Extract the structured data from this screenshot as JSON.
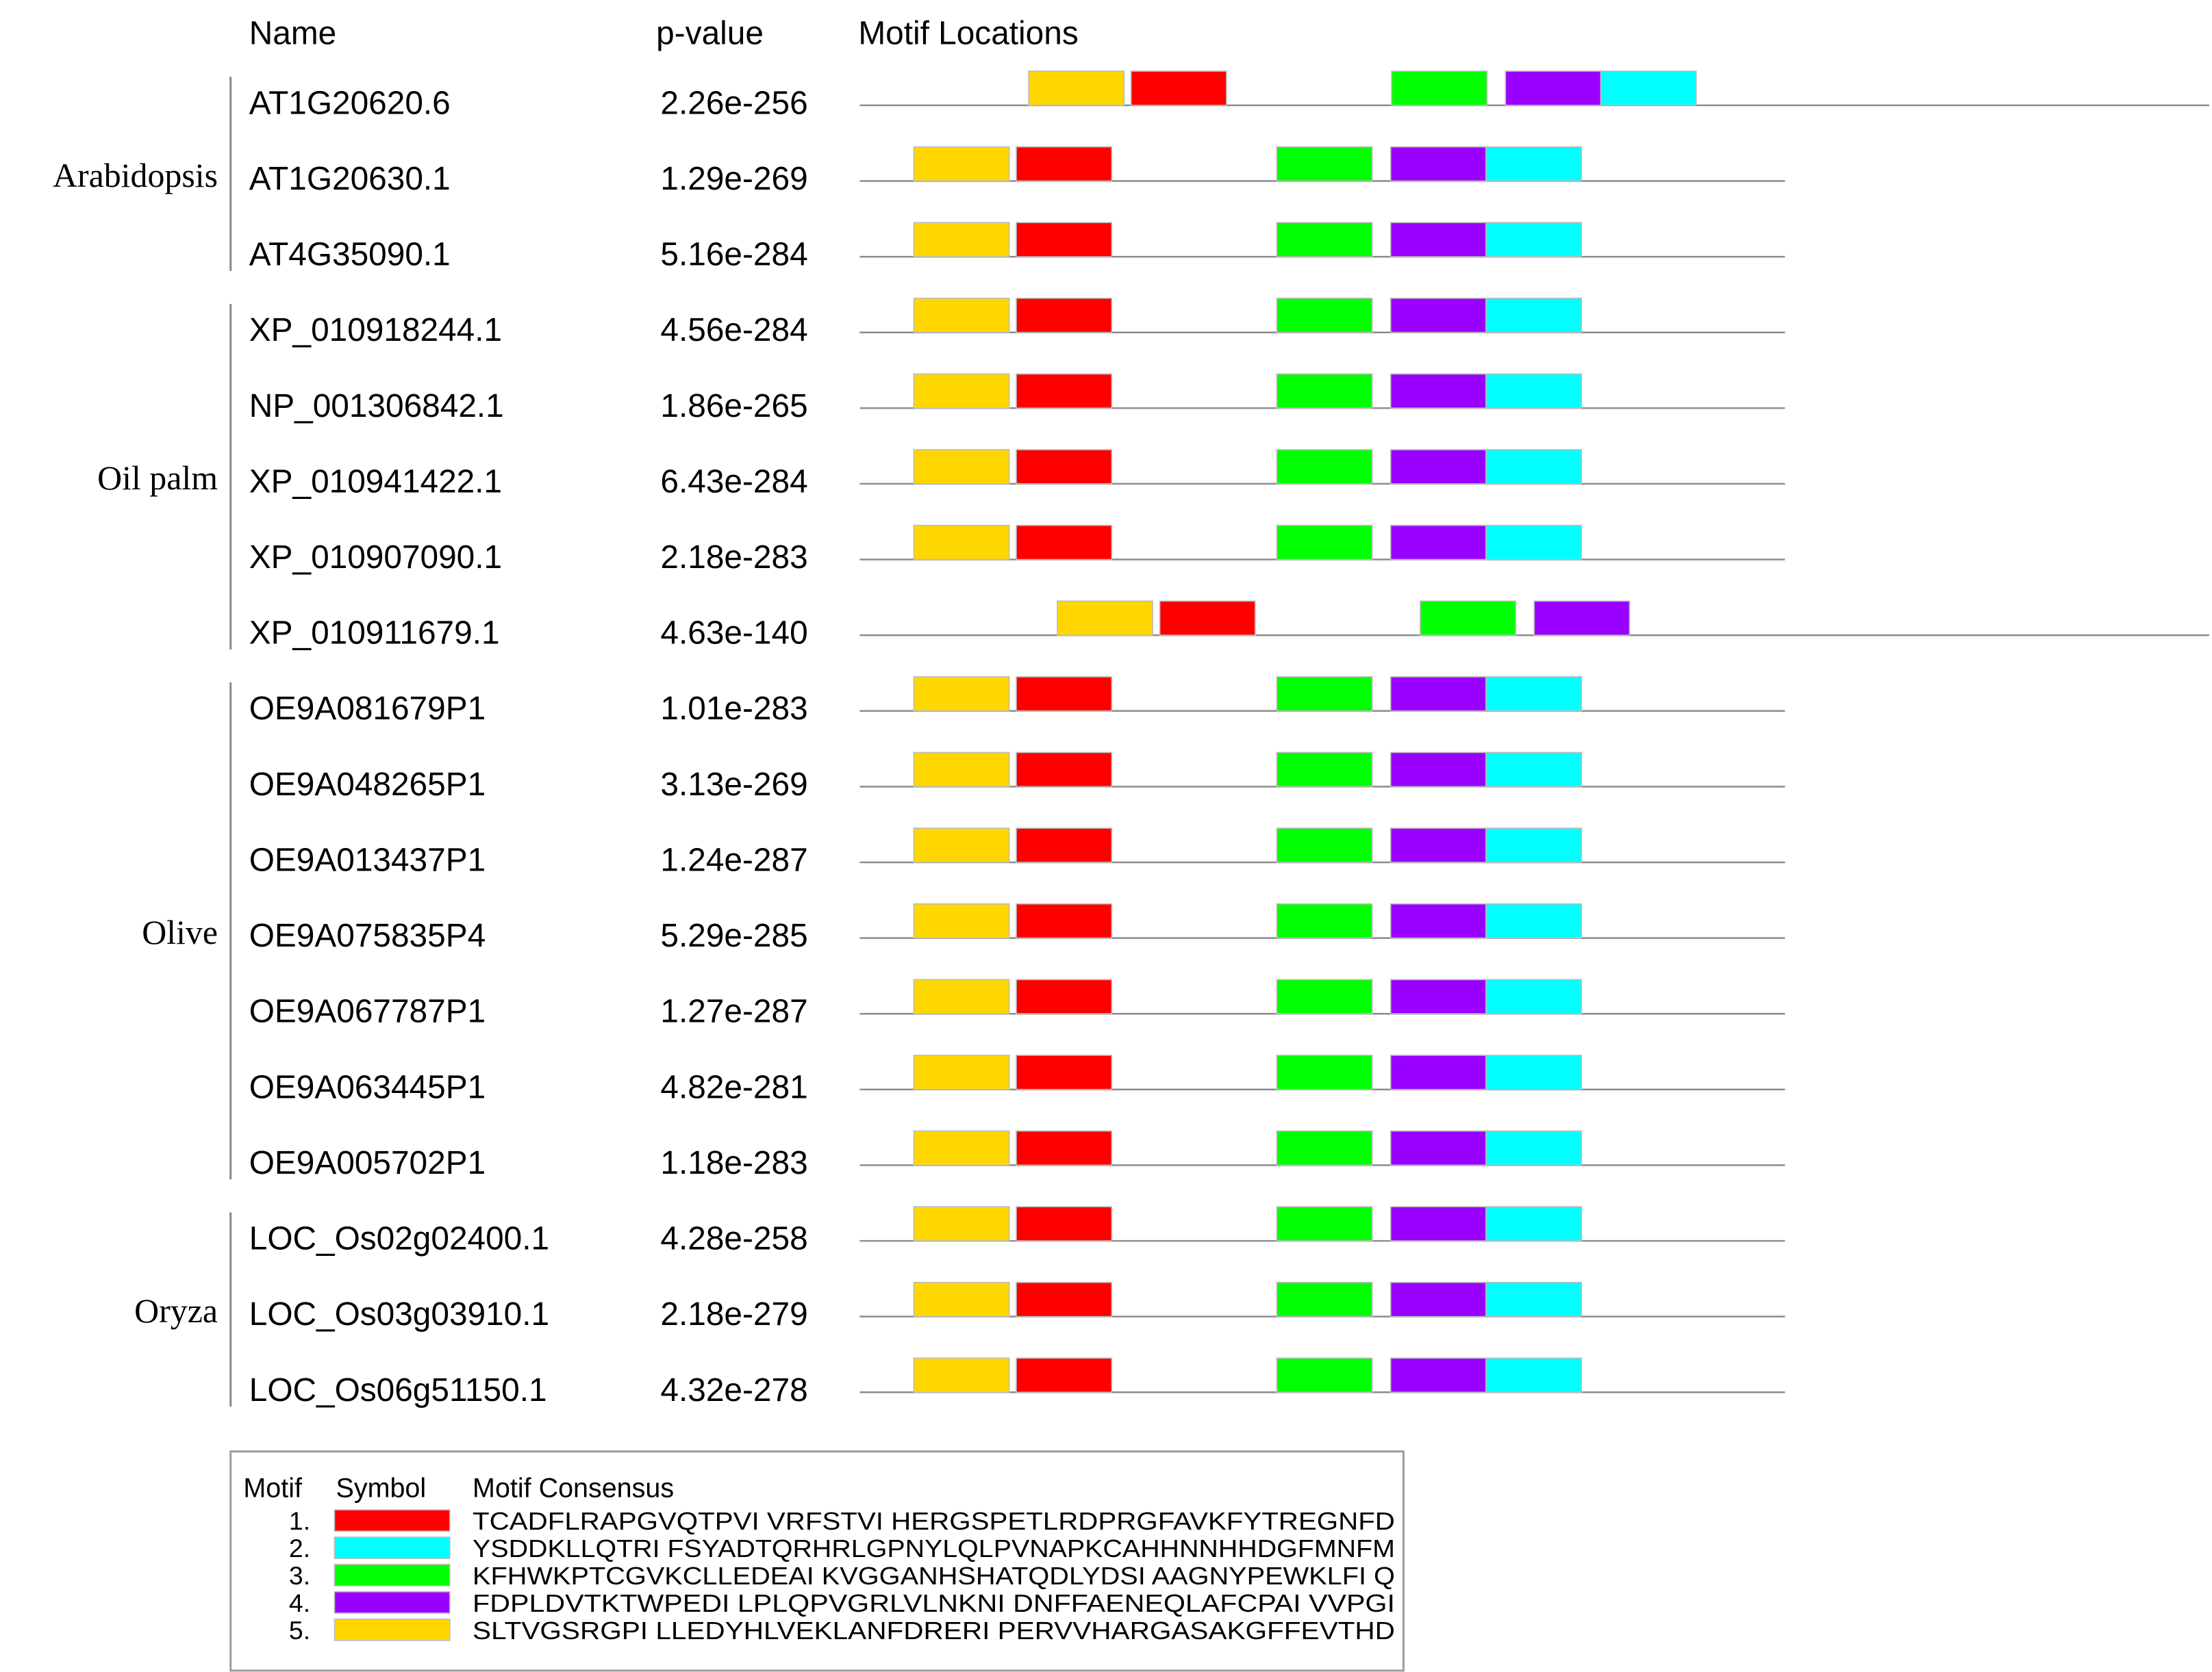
{
  "headers": {
    "name": "Name",
    "pvalue": "p-value",
    "locations": "Motif Locations"
  },
  "groups": [
    {
      "label": "Arabidopsis",
      "start": 0,
      "end": 2
    },
    {
      "label": "Oil palm",
      "start": 3,
      "end": 7
    },
    {
      "label": "Olive",
      "start": 8,
      "end": 14
    },
    {
      "label": "Oryza",
      "start": 15,
      "end": 17
    }
  ],
  "motif_colors": {
    "1": "#ff0000",
    "2": "#00ffff",
    "3": "#00ff00",
    "4": "#9900ff",
    "5": "#ffd700"
  },
  "rows": [
    {
      "name": "AT1G20620.6",
      "pvalue": "2.26e-256",
      "shift": 1.12,
      "length": 1.9,
      "motifs": [
        5,
        1,
        3,
        4,
        2
      ]
    },
    {
      "name": "AT1G20630.1",
      "pvalue": "1.29e-269",
      "shift": 0.0,
      "length": 1.0,
      "motifs": [
        5,
        1,
        3,
        4,
        2
      ]
    },
    {
      "name": "AT4G35090.1",
      "pvalue": "5.16e-284",
      "shift": 0.0,
      "length": 1.0,
      "motifs": [
        5,
        1,
        3,
        4,
        2
      ]
    },
    {
      "name": "XP_010918244.1",
      "pvalue": "4.56e-284",
      "shift": 0.0,
      "length": 1.0,
      "motifs": [
        5,
        1,
        3,
        4,
        2
      ]
    },
    {
      "name": "NP_001306842.1",
      "pvalue": "1.86e-265",
      "shift": 0.0,
      "length": 1.0,
      "motifs": [
        5,
        1,
        3,
        4,
        2
      ]
    },
    {
      "name": "XP_010941422.1",
      "pvalue": "6.43e-284",
      "shift": 0.0,
      "length": 1.0,
      "motifs": [
        5,
        1,
        3,
        4,
        2
      ]
    },
    {
      "name": "XP_010907090.1",
      "pvalue": "2.18e-283",
      "shift": 0.0,
      "length": 1.0,
      "motifs": [
        5,
        1,
        3,
        4,
        2
      ]
    },
    {
      "name": "XP_010911679.1",
      "pvalue": "4.63e-140",
      "shift": 1.4,
      "length": 2.8,
      "motifs": [
        5,
        1,
        3,
        4
      ]
    },
    {
      "name": "OE9A081679P1",
      "pvalue": "1.01e-283",
      "shift": 0.0,
      "length": 1.0,
      "motifs": [
        5,
        1,
        3,
        4,
        2
      ]
    },
    {
      "name": "OE9A048265P1",
      "pvalue": "3.13e-269",
      "shift": 0.0,
      "length": 1.0,
      "motifs": [
        5,
        1,
        3,
        4,
        2
      ]
    },
    {
      "name": "OE9A013437P1",
      "pvalue": "1.24e-287",
      "shift": 0.0,
      "length": 1.0,
      "motifs": [
        5,
        1,
        3,
        4,
        2
      ]
    },
    {
      "name": "OE9A075835P4",
      "pvalue": "5.29e-285",
      "shift": 0.0,
      "length": 1.0,
      "motifs": [
        5,
        1,
        3,
        4,
        2
      ]
    },
    {
      "name": "OE9A067787P1",
      "pvalue": "1.27e-287",
      "shift": 0.0,
      "length": 1.0,
      "motifs": [
        5,
        1,
        3,
        4,
        2
      ]
    },
    {
      "name": "OE9A063445P1",
      "pvalue": "4.82e-281",
      "shift": 0.0,
      "length": 1.0,
      "motifs": [
        5,
        1,
        3,
        4,
        2
      ]
    },
    {
      "name": "OE9A005702P1",
      "pvalue": "1.18e-283",
      "shift": 0.0,
      "length": 1.0,
      "motifs": [
        5,
        1,
        3,
        4,
        2
      ]
    },
    {
      "name": "LOC_Os02g02400.1",
      "pvalue": "4.28e-258",
      "shift": 0.0,
      "length": 1.0,
      "motifs": [
        5,
        1,
        3,
        4,
        2
      ]
    },
    {
      "name": "LOC_Os03g03910.1",
      "pvalue": "2.18e-279",
      "shift": 0.0,
      "length": 1.0,
      "motifs": [
        5,
        1,
        3,
        4,
        2
      ]
    },
    {
      "name": "LOC_Os06g51150.1",
      "pvalue": "4.32e-278",
      "shift": 0.0,
      "length": 1.0,
      "motifs": [
        5,
        1,
        3,
        4,
        2
      ]
    }
  ],
  "legend": {
    "headers": {
      "motif": "Motif",
      "symbol": "Symbol",
      "consensus": "Motif Consensus"
    },
    "entries": [
      {
        "number": "1.",
        "motif": 1,
        "consensus": "TCADFLRAPGVQTPVI VRFSTVI HERGSPETLRDPRGFAVKFYTREGNFD"
      },
      {
        "number": "2.",
        "motif": 2,
        "consensus": "YSDDKLLQTRI FSYADTQRHRLGPNYLQLPVNAPKCAHHNNHHDGFMNFM"
      },
      {
        "number": "3.",
        "motif": 3,
        "consensus": "KFHWKPTCGVKCLLEDEAI KVGGANHSHATQDLYDSI AAGNYPEWKLFI Q"
      },
      {
        "number": "4.",
        "motif": 4,
        "consensus": "FDPLDVTKTWPEDI LPLQPVGRLVLNKNI DNFFAENEQLAFCPAI VVPGI"
      },
      {
        "number": "5.",
        "motif": 5,
        "consensus": "SLTVGSRGPI LLEDYHLVEKLANFDRERI PERVVHARGASAKGFFEVTHD"
      }
    ]
  }
}
